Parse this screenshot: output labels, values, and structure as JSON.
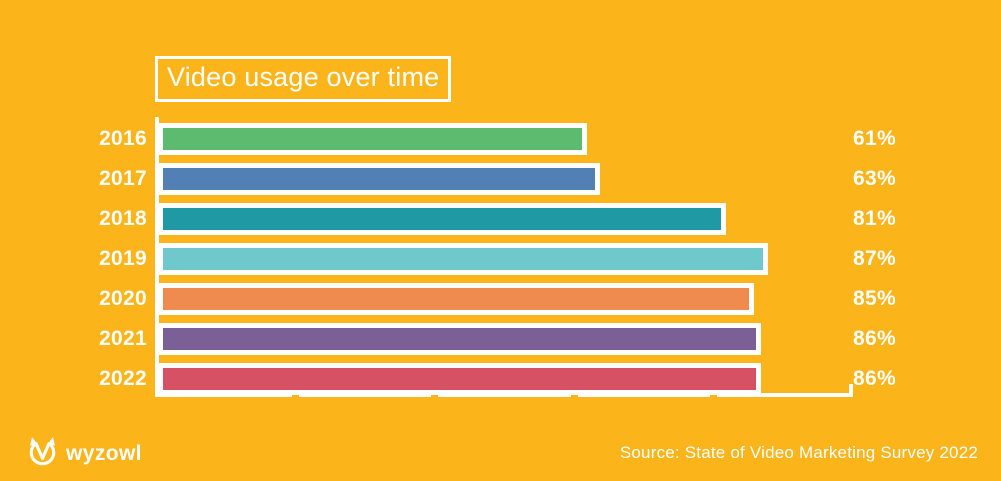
{
  "page": {
    "background_color": "#FCB41B",
    "text_color": "#FFFFFF"
  },
  "chart_data": {
    "type": "bar",
    "orientation": "horizontal",
    "title": "Video usage over time",
    "categories": [
      "2016",
      "2017",
      "2018",
      "2019",
      "2020",
      "2021",
      "2022"
    ],
    "values": [
      61,
      63,
      81,
      87,
      85,
      86,
      86
    ],
    "value_labels": [
      "61%",
      "63%",
      "81%",
      "87%",
      "85%",
      "86%",
      "86%"
    ],
    "bar_colors": [
      "#5CBB6F",
      "#5280B4",
      "#1F9AA5",
      "#6FC8CB",
      "#F08B50",
      "#7A6096",
      "#D65164"
    ],
    "xlim": [
      0,
      100
    ],
    "x_ticks": [
      20,
      40,
      60,
      80,
      100
    ],
    "grid": false,
    "axis_color": "#FFFFFF",
    "legend": null
  },
  "footer": {
    "logo_text": "wyzowl",
    "logo_icon": "wyzowl-circle-check-icon",
    "source_text": "Source: State of Video Marketing Survey 2022"
  }
}
